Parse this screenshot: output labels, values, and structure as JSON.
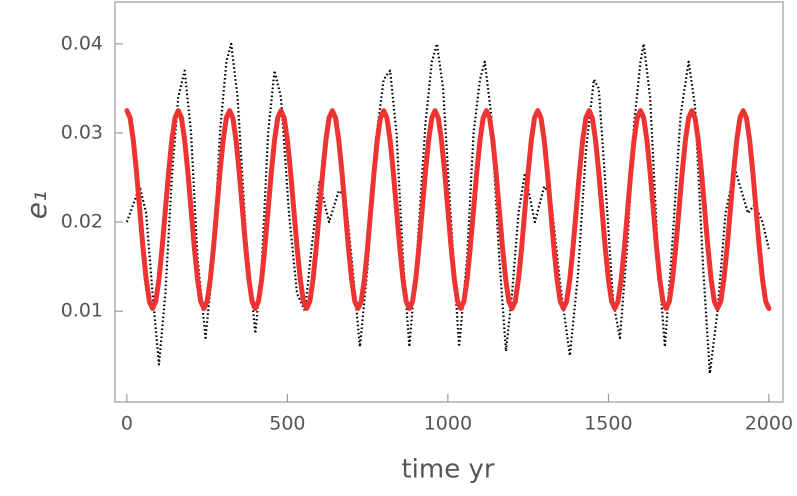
{
  "chart_data": {
    "type": "line",
    "xlabel": "time  yr",
    "ylabel": "e₁",
    "xlim": [
      -37,
      2044
    ],
    "ylim": [
      -0.0002,
      0.0447
    ],
    "xticks": [
      0,
      500,
      1000,
      1500,
      2000
    ],
    "yticks": [
      0.01,
      0.02,
      0.03,
      0.04
    ],
    "series": [
      {
        "color": "#000000",
        "style": "dotted",
        "x": [
          0,
          20,
          40,
          60,
          80,
          100,
          120,
          140,
          160,
          180,
          200,
          220,
          245,
          270,
          290,
          310,
          325,
          345,
          370,
          400,
          420,
          440,
          460,
          480,
          505,
          530,
          555,
          575,
          600,
          630,
          660,
          680,
          700,
          726,
          750,
          775,
          800,
          820,
          840,
          860,
          880,
          905,
          930,
          950,
          966,
          985,
          1010,
          1035,
          1060,
          1080,
          1100,
          1115,
          1135,
          1160,
          1181,
          1200,
          1220,
          1240,
          1271,
          1300,
          1320,
          1350,
          1380,
          1405,
          1430,
          1455,
          1470,
          1495,
          1515,
          1536,
          1560,
          1580,
          1600,
          1610,
          1630,
          1655,
          1676,
          1700,
          1725,
          1750,
          1770,
          1795,
          1816,
          1840,
          1865,
          1894,
          1935,
          1956,
          1980,
          2000
        ],
        "values": [
          0.02,
          0.022,
          0.024,
          0.021,
          0.012,
          0.004,
          0.012,
          0.025,
          0.034,
          0.037,
          0.03,
          0.016,
          0.007,
          0.016,
          0.03,
          0.038,
          0.04,
          0.034,
          0.019,
          0.0075,
          0.015,
          0.03,
          0.037,
          0.034,
          0.021,
          0.012,
          0.01,
          0.017,
          0.0245,
          0.02,
          0.0235,
          0.023,
          0.016,
          0.006,
          0.015,
          0.029,
          0.036,
          0.037,
          0.03,
          0.016,
          0.006,
          0.017,
          0.031,
          0.038,
          0.04,
          0.035,
          0.02,
          0.006,
          0.016,
          0.03,
          0.036,
          0.038,
          0.032,
          0.016,
          0.0055,
          0.012,
          0.021,
          0.0255,
          0.02,
          0.024,
          0.023,
          0.013,
          0.005,
          0.014,
          0.028,
          0.036,
          0.035,
          0.022,
          0.011,
          0.007,
          0.018,
          0.031,
          0.038,
          0.04,
          0.034,
          0.016,
          0.006,
          0.018,
          0.032,
          0.038,
          0.033,
          0.015,
          0.003,
          0.01,
          0.021,
          0.026,
          0.021,
          0.022,
          0.02,
          0.017
        ]
      },
      {
        "color": "#ee3333",
        "style": "solid",
        "x": [
          0,
          10,
          20,
          30,
          40,
          50,
          60,
          70,
          80,
          90,
          100,
          110,
          120,
          130,
          140,
          150,
          160,
          170,
          180,
          190,
          200,
          210,
          220,
          230,
          240,
          250,
          260,
          270,
          280,
          290,
          300,
          310,
          320,
          330,
          340,
          350,
          360,
          370,
          380,
          390,
          400,
          410,
          420,
          430,
          440,
          450,
          460,
          470,
          480,
          490,
          500,
          510,
          520,
          530,
          540,
          550,
          560,
          570,
          580,
          590,
          600,
          610,
          620,
          630,
          640,
          650,
          660,
          670,
          680,
          690,
          700,
          710,
          720,
          730,
          740,
          750,
          760,
          770,
          780,
          790,
          800,
          810,
          820,
          830,
          840,
          850,
          860,
          870,
          880,
          890,
          900,
          910,
          920,
          930,
          940,
          950,
          960,
          970,
          980,
          990,
          1000,
          1010,
          1020,
          1030,
          1040,
          1050,
          1060,
          1070,
          1080,
          1090,
          1100,
          1110,
          1120,
          1130,
          1140,
          1150,
          1160,
          1170,
          1180,
          1190,
          1200,
          1210,
          1220,
          1230,
          1240,
          1250,
          1260,
          1270,
          1280,
          1290,
          1300,
          1310,
          1320,
          1330,
          1340,
          1350,
          1360,
          1370,
          1380,
          1390,
          1400,
          1410,
          1420,
          1430,
          1440,
          1450,
          1460,
          1470,
          1480,
          1490,
          1500,
          1510,
          1520,
          1530,
          1540,
          1550,
          1560,
          1570,
          1580,
          1590,
          1600,
          1610,
          1620,
          1630,
          1640,
          1650,
          1660,
          1670,
          1680,
          1690,
          1700,
          1710,
          1720,
          1730,
          1740,
          1750,
          1760,
          1770,
          1780,
          1790,
          1800,
          1810,
          1820,
          1830,
          1840,
          1850,
          1860,
          1870,
          1880,
          1890,
          1900,
          1910,
          1920,
          1930,
          1940,
          1950,
          1960,
          1970,
          1980,
          1990,
          2000
        ],
        "values": [
          0.0325,
          0.0317,
          0.0292,
          0.0256,
          0.0214,
          0.0172,
          0.0136,
          0.0111,
          0.0103,
          0.0111,
          0.0136,
          0.0172,
          0.0214,
          0.0256,
          0.0292,
          0.0317,
          0.0325,
          0.0317,
          0.0292,
          0.0256,
          0.0214,
          0.0172,
          0.0136,
          0.0111,
          0.0103,
          0.0111,
          0.0136,
          0.0172,
          0.0214,
          0.0256,
          0.0292,
          0.0317,
          0.0325,
          0.0317,
          0.0292,
          0.0256,
          0.0214,
          0.0172,
          0.0136,
          0.0111,
          0.0103,
          0.0111,
          0.0136,
          0.0172,
          0.0214,
          0.0256,
          0.0292,
          0.0317,
          0.0325,
          0.0317,
          0.0292,
          0.0256,
          0.0214,
          0.0172,
          0.0136,
          0.0111,
          0.0103,
          0.0111,
          0.0136,
          0.0172,
          0.0214,
          0.0256,
          0.0292,
          0.0317,
          0.0325,
          0.0317,
          0.0292,
          0.0256,
          0.0214,
          0.0172,
          0.0136,
          0.0111,
          0.0103,
          0.0111,
          0.0136,
          0.0172,
          0.0214,
          0.0256,
          0.0292,
          0.0317,
          0.0325,
          0.0317,
          0.0292,
          0.0256,
          0.0214,
          0.0172,
          0.0136,
          0.0111,
          0.0103,
          0.0111,
          0.0136,
          0.0172,
          0.0214,
          0.0256,
          0.0292,
          0.0317,
          0.0325,
          0.0317,
          0.0292,
          0.0256,
          0.0214,
          0.0172,
          0.0136,
          0.0111,
          0.0103,
          0.0111,
          0.0136,
          0.0172,
          0.0214,
          0.0256,
          0.0292,
          0.0317,
          0.0325,
          0.0317,
          0.0292,
          0.0256,
          0.0214,
          0.0172,
          0.0136,
          0.0111,
          0.0103,
          0.0111,
          0.0136,
          0.0172,
          0.0214,
          0.0256,
          0.0292,
          0.0317,
          0.0325,
          0.0317,
          0.0292,
          0.0256,
          0.0214,
          0.0172,
          0.0136,
          0.0111,
          0.0103,
          0.0111,
          0.0136,
          0.0172,
          0.0214,
          0.0256,
          0.0292,
          0.0317,
          0.0325,
          0.0317,
          0.0292,
          0.0256,
          0.0214,
          0.0172,
          0.0136,
          0.0111,
          0.0103,
          0.0111,
          0.0136,
          0.0172,
          0.0214,
          0.0256,
          0.0292,
          0.0317,
          0.0325,
          0.0317,
          0.0292,
          0.0256,
          0.0214,
          0.0172,
          0.0136,
          0.0111,
          0.0103,
          0.0111,
          0.0136,
          0.0172,
          0.0214,
          0.0256,
          0.0292,
          0.0317,
          0.0325,
          0.0317,
          0.0292,
          0.0256,
          0.0214,
          0.0172,
          0.0136,
          0.0111,
          0.0103,
          0.0111,
          0.0136,
          0.0172,
          0.0214,
          0.0256,
          0.0292,
          0.0317,
          0.0325,
          0.0317,
          0.0292,
          0.0256,
          0.0214,
          0.0172,
          0.0136,
          0.0111,
          0.0103
        ]
      }
    ]
  }
}
